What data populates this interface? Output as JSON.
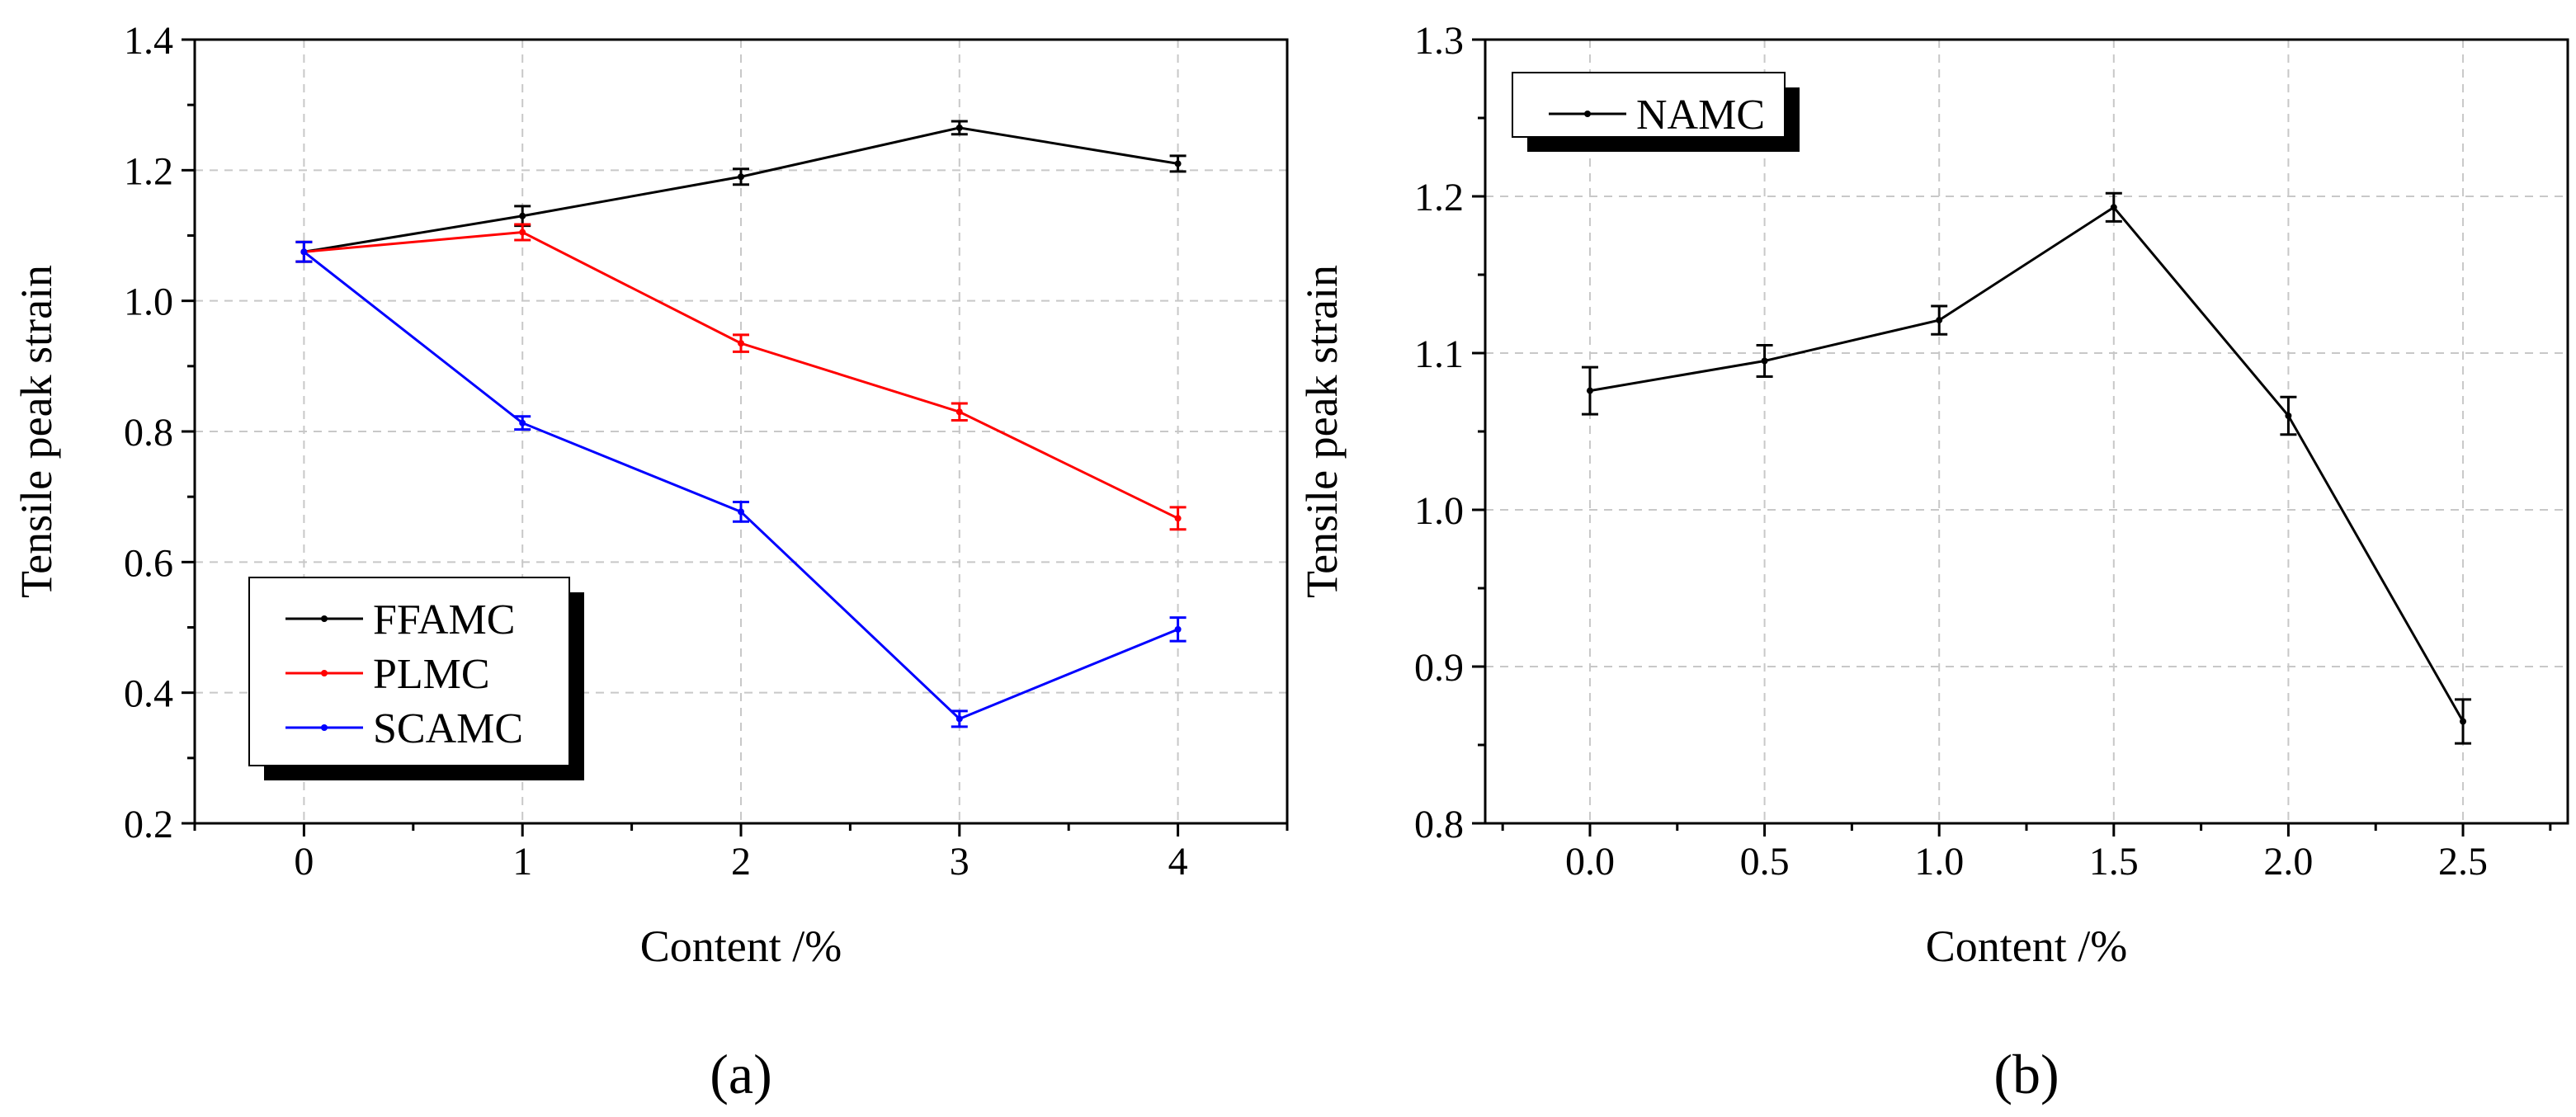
{
  "chart_data": [
    {
      "type": "line",
      "panel_label": "(a)",
      "xlabel": "Content /%",
      "ylabel": "Tensile peak strain",
      "x": [
        0,
        1,
        2,
        3,
        4
      ],
      "xlim": [
        -0.5,
        4.5
      ],
      "ylim": [
        0.2,
        1.4
      ],
      "xticks": [
        "0",
        "1",
        "2",
        "3",
        "4"
      ],
      "yticks": [
        "0.2",
        "0.4",
        "0.6",
        "0.8",
        "1.0",
        "1.2",
        "1.4"
      ],
      "grid": true,
      "legend_position": "lower-left",
      "series": [
        {
          "name": "FFAMC",
          "color": "#000000",
          "values": [
            1.075,
            1.13,
            1.19,
            1.265,
            1.21
          ],
          "errors": [
            0.015,
            0.015,
            0.012,
            0.01,
            0.012
          ]
        },
        {
          "name": "PLMC",
          "color": "#ff0000",
          "values": [
            1.075,
            1.105,
            0.935,
            0.83,
            0.667
          ],
          "errors": [
            0.015,
            0.012,
            0.013,
            0.013,
            0.017
          ]
        },
        {
          "name": "SCAMC",
          "color": "#0000ff",
          "values": [
            1.075,
            0.813,
            0.677,
            0.36,
            0.497
          ],
          "errors": [
            0.015,
            0.01,
            0.015,
            0.012,
            0.018
          ]
        }
      ]
    },
    {
      "type": "line",
      "panel_label": "(b)",
      "xlabel": "Content /%",
      "ylabel": "Tensile peak strain",
      "x": [
        0.0,
        0.5,
        1.0,
        1.5,
        2.0,
        2.5
      ],
      "xlim": [
        -0.3,
        2.8
      ],
      "ylim": [
        0.8,
        1.3
      ],
      "xticks": [
        "0.0",
        "0.5",
        "1.0",
        "1.5",
        "2.0",
        "2.5"
      ],
      "yticks": [
        "0.8",
        "0.9",
        "1.0",
        "1.1",
        "1.2",
        "1.3"
      ],
      "grid": true,
      "legend_position": "top-left",
      "series": [
        {
          "name": "NAMC",
          "color": "#000000",
          "values": [
            1.076,
            1.095,
            1.121,
            1.193,
            1.06,
            0.865
          ],
          "errors": [
            0.015,
            0.01,
            0.009,
            0.009,
            0.012,
            0.014
          ]
        }
      ]
    }
  ]
}
